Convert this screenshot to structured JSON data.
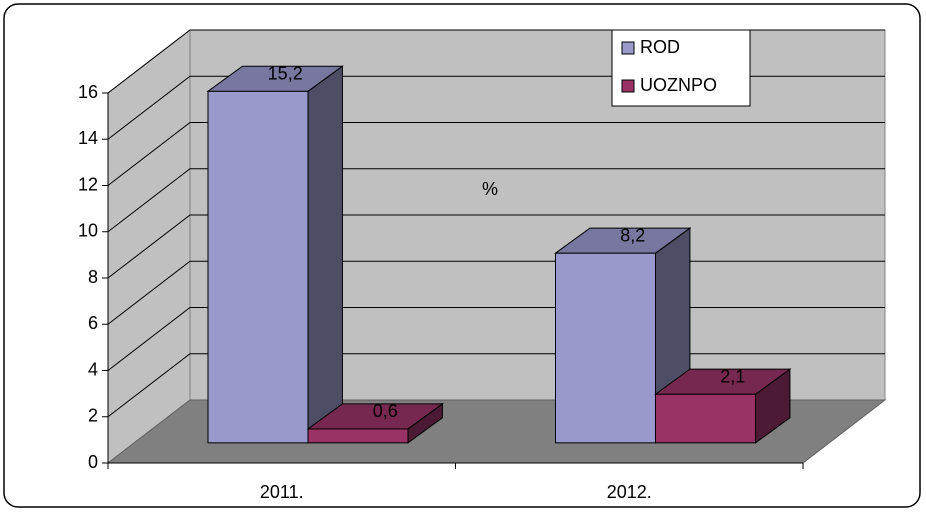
{
  "chart_data": {
    "type": "bar3d",
    "categories": [
      "2011.",
      "2012."
    ],
    "series": [
      {
        "name": "ROD",
        "color": "#9999cc",
        "values": [
          15.2,
          8.2
        ],
        "value_labels": [
          "15,2",
          "8,2"
        ]
      },
      {
        "name": "UOZNPO",
        "color": "#993366",
        "values": [
          0.6,
          2.1
        ],
        "value_labels": [
          "0,6",
          "2,1"
        ]
      }
    ],
    "annotation": "%",
    "ylim": [
      0,
      16
    ],
    "yticks": [
      0,
      2,
      4,
      6,
      8,
      10,
      12,
      14,
      16
    ],
    "grid": true,
    "legend": "top-right"
  }
}
